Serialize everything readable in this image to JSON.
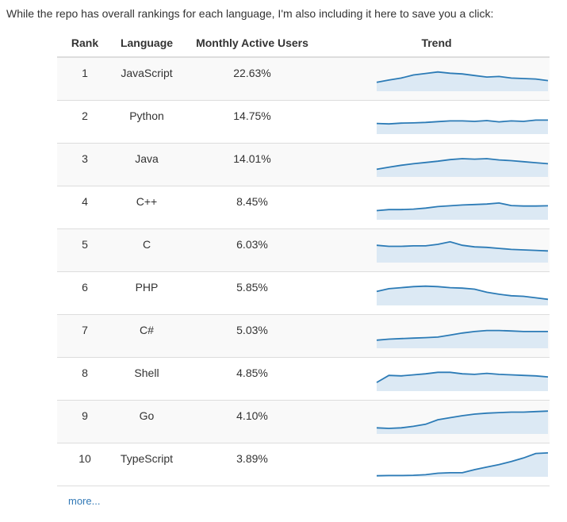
{
  "intro_text": "While the repo has overall rankings for each language, I'm also including it here to save you a click:",
  "table": {
    "headers": {
      "rank": "Rank",
      "language": "Language",
      "mau": "Monthly Active Users",
      "trend": "Trend"
    },
    "rows": [
      {
        "rank": "1",
        "language": "JavaScript",
        "mau": "22.63%",
        "trend": [
          0.35,
          0.44,
          0.52,
          0.64,
          0.7,
          0.76,
          0.71,
          0.68,
          0.62,
          0.56,
          0.58,
          0.52,
          0.5,
          0.48,
          0.42
        ]
      },
      {
        "rank": "2",
        "language": "Python",
        "mau": "14.75%",
        "trend": [
          0.42,
          0.4,
          0.43,
          0.44,
          0.46,
          0.49,
          0.52,
          0.52,
          0.5,
          0.53,
          0.48,
          0.52,
          0.5,
          0.55,
          0.55
        ]
      },
      {
        "rank": "3",
        "language": "Java",
        "mau": "14.01%",
        "trend": [
          0.3,
          0.38,
          0.46,
          0.52,
          0.57,
          0.62,
          0.68,
          0.72,
          0.7,
          0.72,
          0.67,
          0.64,
          0.6,
          0.56,
          0.52
        ]
      },
      {
        "rank": "4",
        "language": "C++",
        "mau": "8.45%",
        "trend": [
          0.36,
          0.4,
          0.4,
          0.42,
          0.46,
          0.52,
          0.55,
          0.58,
          0.6,
          0.62,
          0.66,
          0.56,
          0.54,
          0.54,
          0.55
        ]
      },
      {
        "rank": "5",
        "language": "C",
        "mau": "6.03%",
        "trend": [
          0.68,
          0.64,
          0.64,
          0.66,
          0.66,
          0.72,
          0.82,
          0.68,
          0.62,
          0.6,
          0.56,
          0.52,
          0.5,
          0.48,
          0.46
        ]
      },
      {
        "rank": "6",
        "language": "PHP",
        "mau": "5.85%",
        "trend": [
          0.55,
          0.66,
          0.7,
          0.74,
          0.76,
          0.74,
          0.7,
          0.68,
          0.64,
          0.52,
          0.44,
          0.38,
          0.36,
          0.3,
          0.24
        ]
      },
      {
        "rank": "7",
        "language": "C#",
        "mau": "5.03%",
        "trend": [
          0.32,
          0.36,
          0.38,
          0.4,
          0.42,
          0.44,
          0.52,
          0.6,
          0.66,
          0.7,
          0.7,
          0.68,
          0.66,
          0.66,
          0.66
        ]
      },
      {
        "rank": "8",
        "language": "Shell",
        "mau": "4.85%",
        "trend": [
          0.34,
          0.62,
          0.6,
          0.64,
          0.68,
          0.74,
          0.74,
          0.68,
          0.66,
          0.7,
          0.66,
          0.64,
          0.62,
          0.6,
          0.56
        ]
      },
      {
        "rank": "9",
        "language": "Go",
        "mau": "4.10%",
        "trend": [
          0.24,
          0.22,
          0.24,
          0.3,
          0.38,
          0.56,
          0.64,
          0.72,
          0.78,
          0.82,
          0.84,
          0.86,
          0.86,
          0.88,
          0.9
        ]
      },
      {
        "rank": "10",
        "language": "TypeScript",
        "mau": "3.89%",
        "trend": [
          0.04,
          0.05,
          0.05,
          0.06,
          0.08,
          0.14,
          0.16,
          0.16,
          0.28,
          0.38,
          0.48,
          0.6,
          0.74,
          0.92,
          0.94
        ]
      }
    ]
  },
  "more_link": "more...",
  "colors": {
    "trend_line": "#2c7bb6",
    "trend_fill": "#dce9f4",
    "link": "#337ab7"
  }
}
